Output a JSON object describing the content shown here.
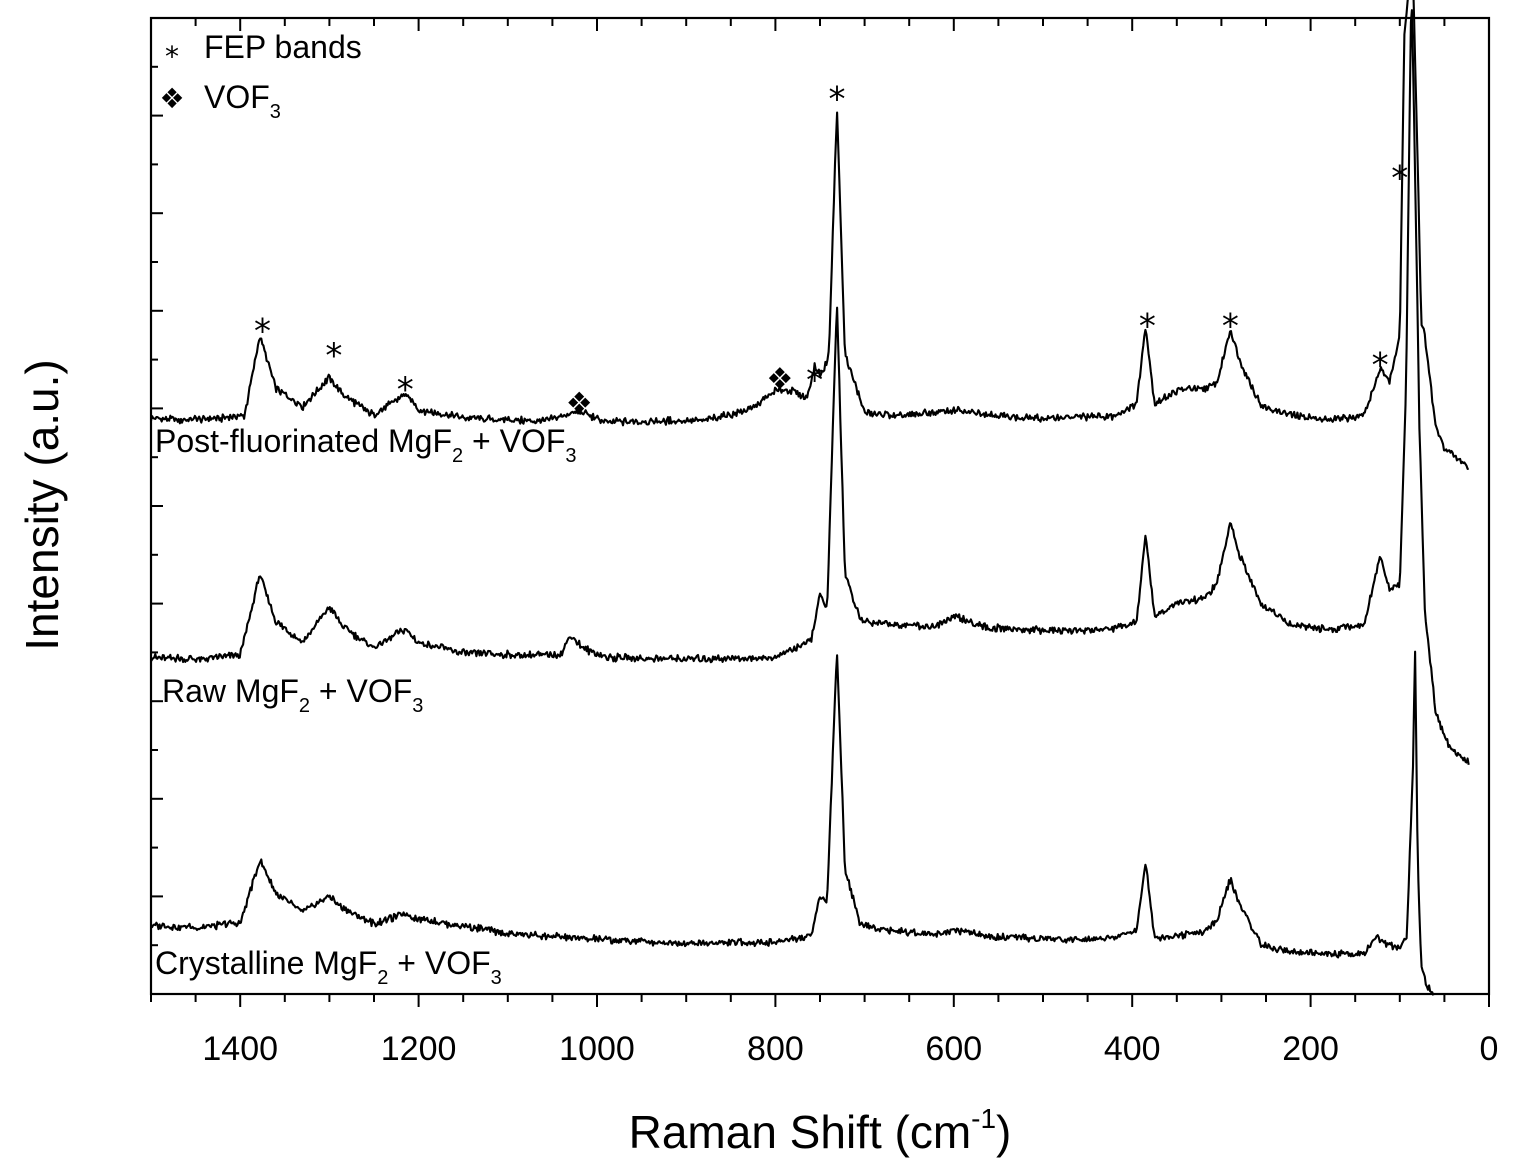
{
  "chart_data": {
    "type": "line",
    "xlabel": "Raman Shift (cm",
    "xlabel_sup": "-1",
    "xlabel_close": ")",
    "ylabel": "Intensity (a.u.)",
    "xlim": [
      1500,
      0
    ],
    "x_reversed": true,
    "ylim": [
      0,
      10
    ],
    "y_tick_labels": "none",
    "xticks": [
      1400,
      1200,
      1000,
      800,
      600,
      400,
      200,
      0
    ],
    "xtick_labels": [
      "1400",
      "1200",
      "1000",
      "800",
      "600",
      "400",
      "200",
      "0"
    ],
    "legend": {
      "position": "top-left",
      "entries": [
        {
          "symbol": "*",
          "symbol_name": "asterisk",
          "text": "FEP bands",
          "sub": ""
        },
        {
          "symbol": "❖",
          "symbol_name": "four-diamond",
          "text": "VOF",
          "sub": "3"
        }
      ]
    },
    "series": [
      {
        "label_parts": [
          "Post-fluorinated MgF",
          "2",
          " + VOF",
          "3"
        ],
        "x_range": [
          1500,
          22
        ],
        "baseline": 5.9,
        "points": [
          [
            1500,
            5.9
          ],
          [
            1470,
            5.88
          ],
          [
            1420,
            5.9
          ],
          [
            1395,
            5.93
          ],
          [
            1378,
            6.75
          ],
          [
            1360,
            6.2
          ],
          [
            1330,
            6.02
          ],
          [
            1300,
            6.32
          ],
          [
            1285,
            6.14
          ],
          [
            1250,
            5.93
          ],
          [
            1215,
            6.15
          ],
          [
            1200,
            5.99
          ],
          [
            1150,
            5.9
          ],
          [
            1060,
            5.87
          ],
          [
            1020,
            5.97
          ],
          [
            990,
            5.86
          ],
          [
            940,
            5.87
          ],
          [
            880,
            5.88
          ],
          [
            830,
            5.98
          ],
          [
            800,
            6.18
          ],
          [
            780,
            6.18
          ],
          [
            765,
            6.1
          ],
          [
            756,
            6.42
          ],
          [
            748,
            6.34
          ],
          [
            740,
            6.55
          ],
          [
            731,
            9.1
          ],
          [
            722,
            6.55
          ],
          [
            700,
            5.96
          ],
          [
            660,
            5.92
          ],
          [
            600,
            5.98
          ],
          [
            520,
            5.9
          ],
          [
            420,
            5.92
          ],
          [
            395,
            6.05
          ],
          [
            385,
            6.85
          ],
          [
            375,
            6.05
          ],
          [
            345,
            6.2
          ],
          [
            320,
            6.2
          ],
          [
            305,
            6.25
          ],
          [
            290,
            6.82
          ],
          [
            280,
            6.5
          ],
          [
            255,
            6.02
          ],
          [
            220,
            5.93
          ],
          [
            180,
            5.88
          ],
          [
            140,
            5.93
          ],
          [
            122,
            6.4
          ],
          [
            112,
            6.27
          ],
          [
            100,
            6.75
          ],
          [
            95,
            9.8
          ],
          [
            90,
            10.3
          ],
          [
            85,
            10.4
          ],
          [
            80,
            8.5
          ],
          [
            76,
            6.9
          ],
          [
            72,
            6.75
          ],
          [
            60,
            5.82
          ],
          [
            50,
            5.6
          ],
          [
            40,
            5.52
          ],
          [
            30,
            5.45
          ],
          [
            22,
            5.38
          ]
        ]
      },
      {
        "label_parts": [
          "Raw MgF",
          "2",
          " + VOF",
          "3"
        ],
        "x_range": [
          1500,
          22
        ],
        "baseline": 3.47,
        "points": [
          [
            1500,
            3.45
          ],
          [
            1450,
            3.43
          ],
          [
            1400,
            3.47
          ],
          [
            1378,
            4.3
          ],
          [
            1360,
            3.82
          ],
          [
            1330,
            3.6
          ],
          [
            1300,
            3.97
          ],
          [
            1285,
            3.76
          ],
          [
            1250,
            3.55
          ],
          [
            1215,
            3.74
          ],
          [
            1200,
            3.6
          ],
          [
            1150,
            3.49
          ],
          [
            1080,
            3.47
          ],
          [
            1040,
            3.48
          ],
          [
            1030,
            3.68
          ],
          [
            1015,
            3.54
          ],
          [
            990,
            3.45
          ],
          [
            900,
            3.43
          ],
          [
            800,
            3.45
          ],
          [
            760,
            3.62
          ],
          [
            750,
            4.08
          ],
          [
            742,
            3.95
          ],
          [
            731,
            7.1
          ],
          [
            722,
            4.3
          ],
          [
            705,
            3.83
          ],
          [
            680,
            3.8
          ],
          [
            620,
            3.76
          ],
          [
            600,
            3.87
          ],
          [
            560,
            3.75
          ],
          [
            480,
            3.72
          ],
          [
            420,
            3.74
          ],
          [
            395,
            3.82
          ],
          [
            385,
            4.7
          ],
          [
            375,
            3.87
          ],
          [
            345,
            4.02
          ],
          [
            320,
            4.05
          ],
          [
            305,
            4.2
          ],
          [
            290,
            4.84
          ],
          [
            280,
            4.5
          ],
          [
            255,
            3.98
          ],
          [
            220,
            3.78
          ],
          [
            180,
            3.73
          ],
          [
            140,
            3.79
          ],
          [
            122,
            4.5
          ],
          [
            112,
            4.15
          ],
          [
            100,
            4.2
          ],
          [
            93,
            6.2
          ],
          [
            87,
            10.4
          ],
          [
            83,
            8.5
          ],
          [
            78,
            5.8
          ],
          [
            72,
            3.93
          ],
          [
            60,
            2.9
          ],
          [
            50,
            2.63
          ],
          [
            40,
            2.5
          ],
          [
            30,
            2.42
          ],
          [
            22,
            2.38
          ]
        ]
      },
      {
        "label_parts": [
          "Crystalline MgF",
          "2",
          " + VOF",
          "3"
        ],
        "x_range": [
          1500,
          62
        ],
        "baseline": 0.5,
        "points": [
          [
            1500,
            0.7
          ],
          [
            1450,
            0.68
          ],
          [
            1400,
            0.73
          ],
          [
            1378,
            1.37
          ],
          [
            1360,
            1.03
          ],
          [
            1330,
            0.84
          ],
          [
            1300,
            1.0
          ],
          [
            1285,
            0.88
          ],
          [
            1250,
            0.72
          ],
          [
            1215,
            0.82
          ],
          [
            1200,
            0.77
          ],
          [
            1100,
            0.62
          ],
          [
            1000,
            0.56
          ],
          [
            900,
            0.52
          ],
          [
            800,
            0.53
          ],
          [
            760,
            0.6
          ],
          [
            750,
            1.0
          ],
          [
            742,
            0.94
          ],
          [
            731,
            3.55
          ],
          [
            722,
            1.28
          ],
          [
            705,
            0.72
          ],
          [
            680,
            0.66
          ],
          [
            620,
            0.61
          ],
          [
            600,
            0.66
          ],
          [
            560,
            0.58
          ],
          [
            480,
            0.56
          ],
          [
            420,
            0.58
          ],
          [
            395,
            0.65
          ],
          [
            385,
            1.37
          ],
          [
            375,
            0.58
          ],
          [
            345,
            0.6
          ],
          [
            320,
            0.64
          ],
          [
            305,
            0.75
          ],
          [
            290,
            1.18
          ],
          [
            280,
            0.92
          ],
          [
            255,
            0.5
          ],
          [
            220,
            0.43
          ],
          [
            180,
            0.41
          ],
          [
            150,
            0.41
          ],
          [
            140,
            0.42
          ],
          [
            125,
            0.58
          ],
          [
            115,
            0.5
          ],
          [
            100,
            0.48
          ],
          [
            92,
            0.6
          ],
          [
            85,
            2.4
          ],
          [
            83,
            3.65
          ],
          [
            80,
            1.4
          ],
          [
            76,
            0.28
          ],
          [
            70,
            0.1
          ],
          [
            62,
            0.0
          ]
        ]
      }
    ],
    "annotations": [
      {
        "symbol": "*",
        "symbol_name": "asterisk",
        "x": 1375,
        "y": 6.9,
        "size": "normal"
      },
      {
        "symbol": "*",
        "symbol_name": "asterisk",
        "x": 1295,
        "y": 6.65,
        "size": "normal"
      },
      {
        "symbol": "*",
        "symbol_name": "asterisk",
        "x": 1215,
        "y": 6.3,
        "size": "normal"
      },
      {
        "symbol": "❖",
        "symbol_name": "four-diamond",
        "x": 1020,
        "y": 6.05,
        "size": "normal"
      },
      {
        "symbol": "❖",
        "symbol_name": "four-diamond",
        "x": 795,
        "y": 6.3,
        "size": "normal"
      },
      {
        "symbol": "*",
        "symbol_name": "asterisk",
        "x": 756,
        "y": 6.4,
        "size": "normal"
      },
      {
        "symbol": "*",
        "symbol_name": "asterisk",
        "x": 731,
        "y": 9.28,
        "size": "normal"
      },
      {
        "symbol": "*",
        "symbol_name": "asterisk",
        "x": 383,
        "y": 6.95,
        "size": "normal"
      },
      {
        "symbol": "*",
        "symbol_name": "asterisk",
        "x": 290,
        "y": 6.95,
        "size": "normal"
      },
      {
        "symbol": "*",
        "symbol_name": "asterisk",
        "x": 122,
        "y": 6.55,
        "size": "normal"
      },
      {
        "symbol": "*",
        "symbol_name": "asterisk",
        "x": 100,
        "y": 8.47,
        "size": "normal"
      }
    ]
  }
}
